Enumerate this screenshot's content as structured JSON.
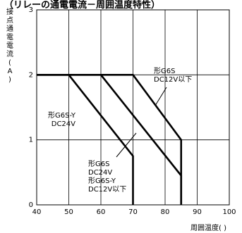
{
  "chart_data": {
    "type": "line",
    "title": "（リレーの通電電流－周囲温度特性）",
    "xlabel": "周囲温度( )",
    "ylabel_chars": [
      "接",
      "点",
      "通",
      "電",
      "電",
      "流",
      "(",
      "A",
      ")"
    ],
    "xlim": [
      40,
      100
    ],
    "ylim": [
      0,
      3
    ],
    "x_ticks": [
      40,
      50,
      60,
      70,
      80,
      90,
      100
    ],
    "y_ticks": [
      0,
      1,
      2,
      3
    ],
    "grid": true,
    "series": [
      {
        "name": "形G6S-Y DC24V",
        "label_lines": [
          "形G6S-Y",
          "DC24V"
        ],
        "points": [
          [
            40,
            2
          ],
          [
            50,
            2
          ],
          [
            70,
            0.75
          ],
          [
            70,
            0
          ]
        ]
      },
      {
        "name": "形G6S DC24V / 形G6S-Y DC12V以下",
        "label_lines": [
          "形G6S",
          "DC24V",
          "形G6S-Y",
          "DC12V以下"
        ],
        "points": [
          [
            40,
            2
          ],
          [
            60,
            2
          ],
          [
            85,
            0.45
          ],
          [
            85,
            0
          ]
        ]
      },
      {
        "name": "形G6S DC12V以下",
        "label_lines": [
          "形G6S",
          "DC12V以下"
        ],
        "points": [
          [
            40,
            2
          ],
          [
            70,
            2
          ],
          [
            85,
            1
          ],
          [
            85,
            0
          ]
        ]
      }
    ]
  }
}
